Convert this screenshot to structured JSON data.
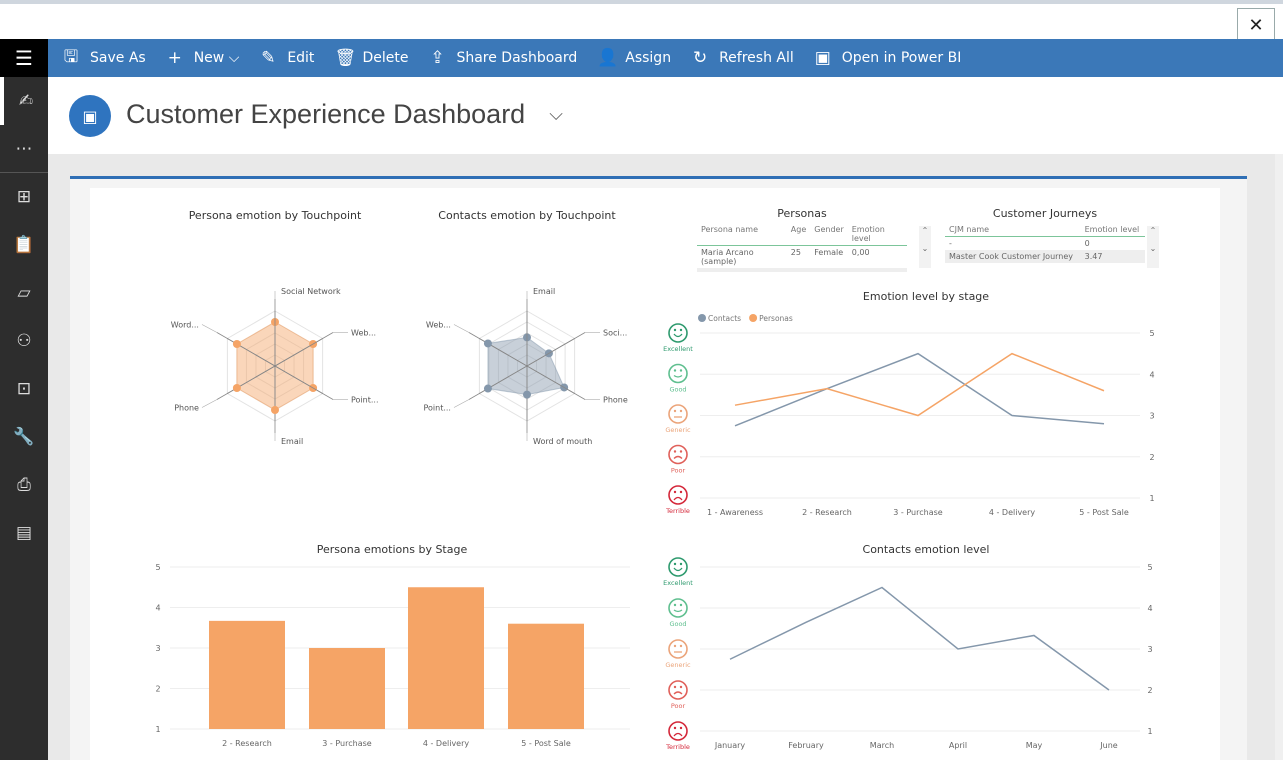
{
  "window": {
    "close_icon": "close-icon"
  },
  "toolbar": {
    "items": [
      {
        "label": "Save As",
        "icon": "🖫"
      },
      {
        "label": "New",
        "icon": "+"
      },
      {
        "label": "Edit",
        "icon": "✎"
      },
      {
        "label": "Delete",
        "icon": "🗑"
      },
      {
        "label": "Share Dashboard",
        "icon": "⇪"
      },
      {
        "label": "Assign",
        "icon": "👤"
      },
      {
        "label": "Refresh All",
        "icon": "↻"
      },
      {
        "label": "Open in Power BI",
        "icon": "▣"
      }
    ],
    "new_chevron": "⌵"
  },
  "sidebar": {
    "items": [
      "user-edit",
      "more",
      "dashboards",
      "tasks",
      "documents",
      "contacts",
      "personas",
      "tools",
      "reports",
      "pages"
    ]
  },
  "header": {
    "title": "Customer Experience Dashboard"
  },
  "personas_table": {
    "title": "Personas",
    "columns": [
      "Persona name",
      "Age",
      "Gender",
      "Emotion level"
    ],
    "rows": [
      [
        "Maria Arcano (sample)",
        "25",
        "Female",
        "0,00"
      ]
    ]
  },
  "journeys_table": {
    "title": "Customer Journeys",
    "columns": [
      "CJM name",
      "Emotion level"
    ],
    "rows": [
      [
        "-",
        "0"
      ],
      [
        "Master Cook Customer Journey",
        "3.47"
      ]
    ]
  },
  "emotion_scale": [
    "Excellent",
    "Good",
    "Generic",
    "Poor",
    "Terrible"
  ],
  "colors": {
    "contacts": "#8497ab",
    "personas": "#f5a466",
    "excellent": "#2e9a6e",
    "good": "#5fbf8f",
    "generic": "#eba47a",
    "poor": "#e0605a",
    "terrible": "#d4283a"
  },
  "chart_data": [
    {
      "type": "radar",
      "title": "Persona emotion by Touchpoint",
      "axes": [
        "Social Network",
        "Web...",
        "Point...",
        "Email",
        "Phone",
        "Word..."
      ],
      "values": [
        4,
        4,
        4,
        4,
        4,
        4
      ],
      "max": 5,
      "color": "#f5a466"
    },
    {
      "type": "radar",
      "title": "Contacts emotion by Touchpoint",
      "axes": [
        "Email",
        "Soci...",
        "Phone",
        "Word of mouth",
        "Point...",
        "Web..."
      ],
      "values": [
        2.6,
        2.3,
        3.9,
        2.6,
        4.1,
        4.1
      ],
      "max": 5,
      "color": "#8497ab"
    },
    {
      "type": "line",
      "title": "Emotion level by stage",
      "categories": [
        "1 - Awareness",
        "2 - Research",
        "3 - Purchase",
        "4 - Delivery",
        "5 - Post Sale"
      ],
      "series": [
        {
          "name": "Contacts",
          "values": [
            2.75,
            3.65,
            4.5,
            3.0,
            2.8
          ]
        },
        {
          "name": "Personas",
          "values": [
            3.25,
            3.65,
            3.0,
            4.5,
            3.6
          ]
        }
      ],
      "ylim": [
        1,
        5
      ],
      "yticks": [
        1,
        2,
        3,
        4,
        5
      ],
      "legend": "top-left",
      "grid": true
    },
    {
      "type": "bar",
      "title": "Persona emotions by Stage",
      "categories": [
        "2 - Research",
        "3 - Purchase",
        "4 - Delivery",
        "5 - Post Sale"
      ],
      "values": [
        3.67,
        3.0,
        4.5,
        3.6
      ],
      "ylim": [
        1,
        5
      ],
      "yticks": [
        1,
        2,
        3,
        4,
        5
      ],
      "grid": true
    },
    {
      "type": "line",
      "title": "Contacts emotion level",
      "categories": [
        "January",
        "February",
        "March",
        "April",
        "May",
        "June"
      ],
      "series": [
        {
          "values": [
            2.75,
            3.65,
            4.5,
            3.0,
            3.33,
            2.0
          ]
        }
      ],
      "ylim": [
        1,
        5
      ],
      "yticks": [
        1,
        2,
        3,
        4,
        5
      ],
      "grid": true
    }
  ]
}
